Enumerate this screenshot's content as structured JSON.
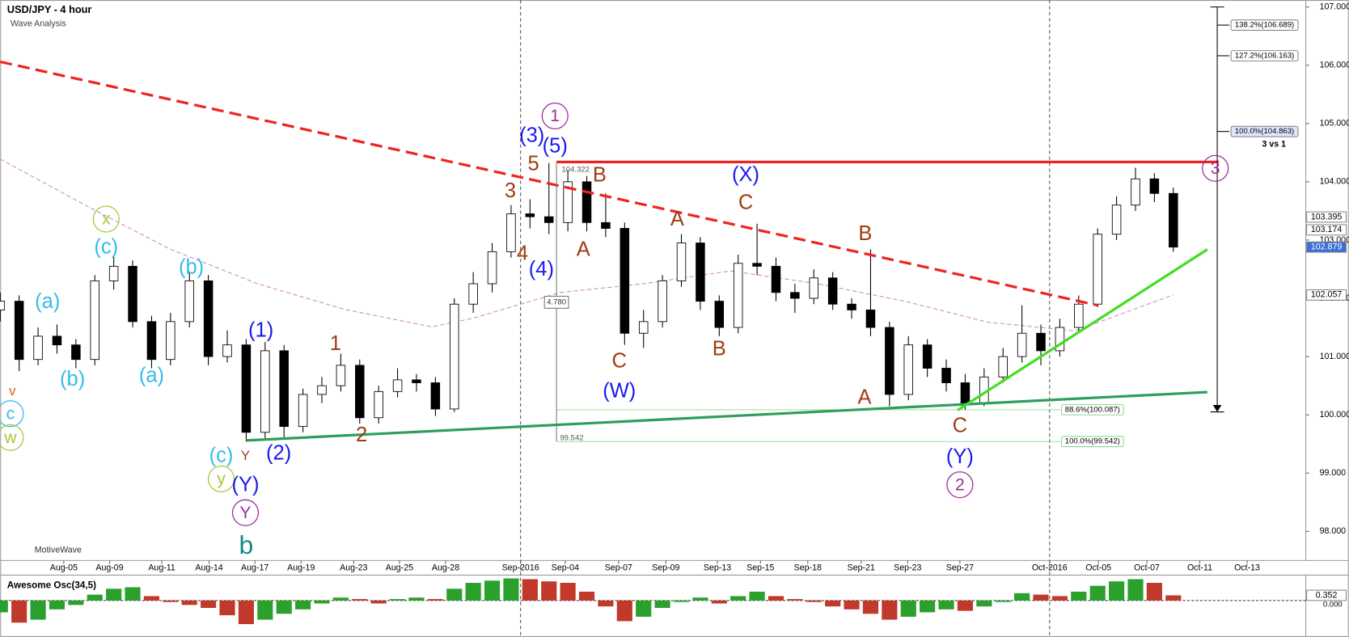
{
  "chart_data": {
    "type": "candlestick",
    "title": "USD/JPY - 4 hour",
    "subtitle": "Wave Analysis",
    "watermark": "MotiveWave",
    "note": "3 vs 1",
    "up_color": "#ffffff",
    "down_color": "#000000",
    "xlim": [
      0,
      345
    ],
    "ylim": [
      97.5,
      107.12
    ],
    "x": [
      0,
      5,
      10,
      15,
      20,
      25,
      30,
      35,
      40,
      45,
      50,
      55,
      60,
      65,
      70,
      75,
      80,
      85,
      90,
      95,
      100,
      105,
      110,
      115,
      120,
      125,
      130,
      135,
      140,
      145,
      150,
      155,
      160,
      165,
      170,
      175,
      180,
      185,
      190,
      195,
      200,
      205,
      210,
      215,
      220,
      225,
      230,
      235,
      240,
      245,
      250,
      255,
      260,
      265,
      270,
      275,
      280,
      285,
      290,
      295,
      300,
      305,
      310
    ],
    "open": [
      101.8,
      101.95,
      100.95,
      101.35,
      101.2,
      100.95,
      102.3,
      102.55,
      101.6,
      100.95,
      101.6,
      102.3,
      101.0,
      101.2,
      99.7,
      101.1,
      99.8,
      100.35,
      100.5,
      100.85,
      99.95,
      100.4,
      100.6,
      100.55,
      100.1,
      101.9,
      102.25,
      102.8,
      103.45,
      103.4,
      103.3,
      104.0,
      103.3,
      103.2,
      101.4,
      101.6,
      102.3,
      102.95,
      101.95,
      101.5,
      102.6,
      102.55,
      102.1,
      102.0,
      102.35,
      101.9,
      101.8,
      101.5,
      100.35,
      101.2,
      100.8,
      100.55,
      100.2,
      100.65,
      101.0,
      101.4,
      101.1,
      101.5,
      101.9,
      103.1,
      103.6,
      104.05,
      103.8
    ],
    "high": [
      102.1,
      102.05,
      101.5,
      101.55,
      101.3,
      102.4,
      102.72,
      102.65,
      101.7,
      101.75,
      102.45,
      102.4,
      101.45,
      101.3,
      101.25,
      101.2,
      100.45,
      100.65,
      101.05,
      100.95,
      100.5,
      100.8,
      100.7,
      100.65,
      102.0,
      102.45,
      102.95,
      103.6,
      103.7,
      104.322,
      104.2,
      104.1,
      103.8,
      103.3,
      101.8,
      102.4,
      103.1,
      103.05,
      102.05,
      102.75,
      103.28,
      102.7,
      102.25,
      102.5,
      102.45,
      102.0,
      102.84,
      101.6,
      101.35,
      101.3,
      100.95,
      100.7,
      100.8,
      101.15,
      101.88,
      101.55,
      101.65,
      102.05,
      103.2,
      103.75,
      104.24,
      104.15,
      103.9
    ],
    "low": [
      101.6,
      100.75,
      100.85,
      101.05,
      100.8,
      100.85,
      102.15,
      101.5,
      100.8,
      100.85,
      101.5,
      100.85,
      100.9,
      99.54,
      99.6,
      99.6,
      99.7,
      100.2,
      100.4,
      99.85,
      99.85,
      100.3,
      100.4,
      99.98,
      100.05,
      101.75,
      102.1,
      102.7,
      103.2,
      103.1,
      103.15,
      103.15,
      103.05,
      101.2,
      101.15,
      101.5,
      102.2,
      101.8,
      101.35,
      101.4,
      102.4,
      101.95,
      101.75,
      101.9,
      101.8,
      101.65,
      101.35,
      100.15,
      100.25,
      100.65,
      100.4,
      100.09,
      100.15,
      100.55,
      100.9,
      100.85,
      101.0,
      101.4,
      101.85,
      103.0,
      103.5,
      103.65,
      102.8
    ],
    "close": [
      101.95,
      100.95,
      101.35,
      101.2,
      100.95,
      102.3,
      102.55,
      101.6,
      100.95,
      101.6,
      102.3,
      101.0,
      101.2,
      99.7,
      101.1,
      99.8,
      100.35,
      100.5,
      100.85,
      99.95,
      100.4,
      100.6,
      100.55,
      100.1,
      101.9,
      102.25,
      102.8,
      103.45,
      103.4,
      103.3,
      104.0,
      103.3,
      103.2,
      101.4,
      101.6,
      102.3,
      102.95,
      101.95,
      101.5,
      102.6,
      102.55,
      102.1,
      102.0,
      102.35,
      101.9,
      101.8,
      101.5,
      100.35,
      101.2,
      100.8,
      100.55,
      100.2,
      100.65,
      101.0,
      101.4,
      101.1,
      101.5,
      101.9,
      103.1,
      103.6,
      104.05,
      103.8,
      102.879
    ],
    "xticks": [
      {
        "value": 16.8,
        "label": "Aug-05"
      },
      {
        "value": 28.9,
        "label": "Aug-09"
      },
      {
        "value": 42.7,
        "label": "Aug-11"
      },
      {
        "value": 55.2,
        "label": "Aug-14"
      },
      {
        "value": 67.3,
        "label": "Aug-17"
      },
      {
        "value": 79.5,
        "label": "Aug-19"
      },
      {
        "value": 93.4,
        "label": "Aug-23"
      },
      {
        "value": 105.5,
        "label": "Aug-25"
      },
      {
        "value": 117.7,
        "label": "Aug-28"
      },
      {
        "value": 137.5,
        "label": "Sep-2016"
      },
      {
        "value": 149.3,
        "label": "Sep-04"
      },
      {
        "value": 163.4,
        "label": "Sep-07"
      },
      {
        "value": 175.9,
        "label": "Sep-09"
      },
      {
        "value": 189.5,
        "label": "Sep-13"
      },
      {
        "value": 200.9,
        "label": "Sep-15"
      },
      {
        "value": 213.4,
        "label": "Sep-18"
      },
      {
        "value": 227.5,
        "label": "Sep-21"
      },
      {
        "value": 239.8,
        "label": "Sep-23"
      },
      {
        "value": 253.6,
        "label": "Sep-27"
      },
      {
        "value": 277.3,
        "label": "Oct-2016"
      },
      {
        "value": 290.2,
        "label": "Oct-05"
      },
      {
        "value": 303.0,
        "label": "Oct-07"
      },
      {
        "value": 317.0,
        "label": "Oct-11"
      },
      {
        "value": 329.5,
        "label": "Oct-13"
      }
    ],
    "separators": [
      137.5,
      277.3
    ],
    "yticks": [
      {
        "value": 107,
        "label": "107.000"
      },
      {
        "value": 106,
        "label": "106.000"
      },
      {
        "value": 105,
        "label": "105.000"
      },
      {
        "value": 104,
        "label": "104.000"
      },
      {
        "value": 103,
        "label": "103.000"
      },
      {
        "value": 102,
        "label": "102.000"
      },
      {
        "value": 101,
        "label": "101.000"
      },
      {
        "value": 100,
        "label": "100.000"
      },
      {
        "value": 99,
        "label": "99.000"
      },
      {
        "value": 98,
        "label": "98.000"
      }
    ],
    "moving_average": {
      "color": "#cc88cc",
      "x": [
        0,
        23,
        45,
        68,
        91,
        114,
        125,
        148,
        170,
        193,
        216,
        239,
        261,
        284,
        310
      ],
      "values": [
        104.39,
        103.58,
        102.84,
        102.25,
        101.81,
        101.51,
        101.66,
        102.1,
        102.25,
        102.47,
        102.25,
        101.95,
        101.59,
        101.44,
        102.06
      ]
    },
    "trendlines": [
      {
        "x": [
          0,
          290
        ],
        "values": [
          106.06,
          101.88
        ],
        "color": "#ee2222",
        "dashed": true
      },
      {
        "x": [
          147,
          322
        ],
        "values": [
          104.34,
          104.34
        ],
        "color": "#ee2222",
        "dashed": false
      },
      {
        "x": [
          65,
          319
        ],
        "values": [
          99.56,
          100.39
        ],
        "color": "#2e9e5b",
        "dashed": false
      },
      {
        "x": [
          253,
          319
        ],
        "values": [
          100.08,
          102.84
        ],
        "color": "#44dd22",
        "dashed": false
      }
    ],
    "projection_line": {
      "x": 321.6,
      "values": [
        107.0,
        100.05
      ]
    },
    "projection_levels": [
      {
        "value": 106.689,
        "label": "138.2%(106.689)"
      },
      {
        "value": 106.163,
        "label": "127.2%(106.163)"
      },
      {
        "value": 104.863,
        "label": "100.0%(104.863)"
      }
    ],
    "retracement_levels": [
      {
        "value": 100.087,
        "label": "88.6%(100.087)"
      },
      {
        "value": 99.542,
        "label": "100.0%(99.542)"
      }
    ],
    "measure": {
      "x": 147,
      "high": 104.322,
      "low": 99.542,
      "range": {
        "value": 4.78,
        "label": "4.780"
      }
    },
    "price_tags": [
      103.395,
      103.174,
      102.879,
      102.057
    ],
    "wave_labels": [
      {
        "text": "v",
        "color": "#e06010",
        "x": 3.2,
        "y": 100.41,
        "emphasis": "small"
      },
      {
        "text": "c",
        "color": "#33bbee",
        "x": 2.7,
        "y": 100.02,
        "circled": true
      },
      {
        "text": "w",
        "color": "#a8c83a",
        "x": 2.7,
        "y": 99.61,
        "circled": true
      },
      {
        "text": "(a)",
        "color": "#33bbee",
        "x": 12.5,
        "y": 101.94
      },
      {
        "text": "(b)",
        "color": "#33bbee",
        "x": 19.1,
        "y": 100.61
      },
      {
        "text": "(c)",
        "color": "#33bbee",
        "x": 28.0,
        "y": 102.88
      },
      {
        "text": "x",
        "color": "#a8c83a",
        "x": 28.0,
        "y": 103.36,
        "circled": true
      },
      {
        "text": "(a)",
        "color": "#33bbee",
        "x": 40.0,
        "y": 100.67
      },
      {
        "text": "(b)",
        "color": "#33bbee",
        "x": 50.5,
        "y": 102.53
      },
      {
        "text": "(c)",
        "color": "#33bbee",
        "x": 58.4,
        "y": 99.3
      },
      {
        "text": "y",
        "color": "#a8c83a",
        "x": 58.4,
        "y": 98.9,
        "circled": true
      },
      {
        "text": "(1)",
        "color": "#1a1aee",
        "x": 68.9,
        "y": 101.45
      },
      {
        "text": "Y",
        "color": "#9c3d12",
        "x": 64.8,
        "y": 99.3,
        "emphasis": "small"
      },
      {
        "text": "(Y)",
        "color": "#1a1aee",
        "x": 64.8,
        "y": 98.8
      },
      {
        "text": "Y",
        "color": "#9b2f9b",
        "x": 64.8,
        "y": 98.32,
        "circled": true
      },
      {
        "text": "b",
        "color": "#138a8a",
        "x": 65.0,
        "y": 97.75,
        "emphasis": "large"
      },
      {
        "text": "(2)",
        "color": "#1a1aee",
        "x": 73.6,
        "y": 99.34
      },
      {
        "text": "1",
        "color": "#9c3d12",
        "x": 88.6,
        "y": 101.22
      },
      {
        "text": "2",
        "color": "#9c3d12",
        "x": 95.5,
        "y": 99.65
      },
      {
        "text": "3",
        "color": "#9c3d12",
        "x": 134.8,
        "y": 103.84
      },
      {
        "text": "4",
        "color": "#9c3d12",
        "x": 138.0,
        "y": 102.77
      },
      {
        "text": "(4)",
        "color": "#1a1aee",
        "x": 143.0,
        "y": 102.5
      },
      {
        "text": "5",
        "color": "#9c3d12",
        "x": 140.9,
        "y": 104.31
      },
      {
        "text": "(3)",
        "color": "#1a1aee",
        "x": 140.5,
        "y": 104.79
      },
      {
        "text": "(5)",
        "color": "#1a1aee",
        "x": 146.6,
        "y": 104.61
      },
      {
        "text": "1",
        "color": "#9b2f9b",
        "x": 146.6,
        "y": 105.13,
        "circled": true
      },
      {
        "text": "A",
        "color": "#9c3d12",
        "x": 154.1,
        "y": 102.84
      },
      {
        "text": "B",
        "color": "#9c3d12",
        "x": 158.4,
        "y": 104.11
      },
      {
        "text": "C",
        "color": "#9c3d12",
        "x": 163.6,
        "y": 100.92
      },
      {
        "text": "(W)",
        "color": "#1a1aee",
        "x": 163.6,
        "y": 100.41
      },
      {
        "text": "A",
        "color": "#9c3d12",
        "x": 178.9,
        "y": 103.36
      },
      {
        "text": "B",
        "color": "#9c3d12",
        "x": 190.0,
        "y": 101.13
      },
      {
        "text": "C",
        "color": "#9c3d12",
        "x": 197.0,
        "y": 103.64
      },
      {
        "text": "(X)",
        "color": "#1a1aee",
        "x": 197.0,
        "y": 104.12
      },
      {
        "text": "B",
        "color": "#9c3d12",
        "x": 228.6,
        "y": 103.11
      },
      {
        "text": "A",
        "color": "#9c3d12",
        "x": 228.4,
        "y": 100.3
      },
      {
        "text": "C",
        "color": "#9c3d12",
        "x": 253.6,
        "y": 99.81
      },
      {
        "text": "(Y)",
        "color": "#1a1aee",
        "x": 253.6,
        "y": 99.28
      },
      {
        "text": "2",
        "color": "#9b2f9b",
        "x": 253.6,
        "y": 98.8,
        "circled": true
      },
      {
        "text": "3",
        "color": "#9b2f9b",
        "x": 321.1,
        "y": 104.23,
        "circled": true
      }
    ],
    "oscillator": {
      "title": "Awesome Osc(34,5)",
      "up_color": "#2ca02c",
      "down_color": "#c0392b",
      "ylim": [
        -2.3,
        1.55
      ],
      "yticks": [
        {
          "value": 0,
          "label": "0.000"
        }
      ],
      "value_tag": 0.352,
      "values": [
        -0.8,
        -1.5,
        -1.3,
        -0.6,
        -0.3,
        0.4,
        0.8,
        0.9,
        0.3,
        -0.1,
        -0.3,
        -0.5,
        -1.0,
        -1.6,
        -1.3,
        -0.9,
        -0.6,
        -0.2,
        0.2,
        0.1,
        -0.2,
        0.1,
        0.2,
        0.1,
        0.8,
        1.2,
        1.35,
        1.5,
        1.45,
        1.3,
        1.2,
        0.6,
        -0.4,
        -1.4,
        -1.1,
        -0.5,
        -0.1,
        0.2,
        -0.2,
        0.3,
        0.6,
        0.3,
        0.1,
        -0.1,
        -0.4,
        -0.6,
        -0.9,
        -1.3,
        -1.1,
        -0.8,
        -0.6,
        -0.7,
        -0.4,
        -0.1,
        0.5,
        0.4,
        0.3,
        0.6,
        1.0,
        1.3,
        1.45,
        1.2,
        0.352
      ]
    }
  }
}
